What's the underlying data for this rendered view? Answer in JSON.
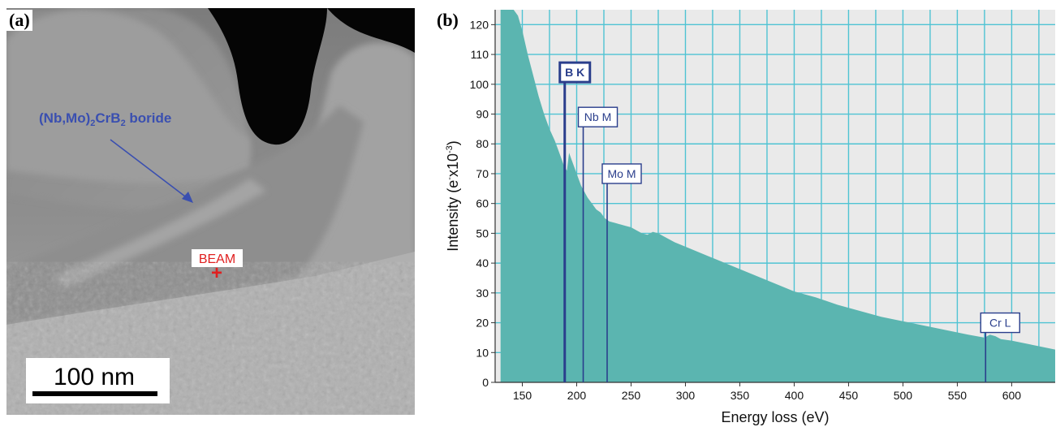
{
  "panels": {
    "a": {
      "label": "(a)"
    },
    "b": {
      "label": "(b)"
    }
  },
  "micrograph": {
    "phase_label": {
      "prefix": "(Nb,Mo)",
      "sub1": "2",
      "mid": "CrB",
      "sub2": "2",
      "suffix": " boride"
    },
    "beam_label": "BEAM",
    "beam_marker": "+",
    "scale_bar_label": "100 nm"
  },
  "colors": {
    "spectrum_fill": "#5BB5B0",
    "grid": "#4FC3D3",
    "plot_background": "#EAEAEA",
    "edge_marker": "#2A3E8C",
    "phase_annotation": "#3A4FB0",
    "beam": "#E02020"
  },
  "chart_data": {
    "type": "area",
    "xlabel": "Energy loss  (eV)",
    "ylabel": {
      "main": "Intensity  (e",
      "sup1": "-",
      "mid": "x10",
      "sup2": "-3",
      "end": ")"
    },
    "xlim": [
      125,
      640
    ],
    "ylim": [
      0,
      125
    ],
    "x_ticks": [
      150,
      200,
      250,
      300,
      350,
      400,
      450,
      500,
      550,
      600
    ],
    "y_ticks": [
      0,
      10,
      20,
      30,
      40,
      50,
      60,
      70,
      80,
      90,
      100,
      110,
      120
    ],
    "grid": true,
    "series": [
      {
        "x": [
          130,
          134,
          138,
          142,
          146,
          150,
          155,
          160,
          165,
          170,
          175,
          180,
          185,
          188,
          191,
          193,
          195,
          198,
          201,
          204,
          207,
          210,
          214,
          218,
          222,
          226,
          230,
          235,
          240,
          245,
          250,
          255,
          260,
          265,
          270,
          275,
          280,
          290,
          300,
          320,
          340,
          360,
          380,
          400,
          420,
          440,
          460,
          480,
          500,
          520,
          540,
          560,
          575,
          580,
          585,
          590,
          600,
          620,
          640
        ],
        "y": [
          125,
          125,
          125,
          125,
          123,
          118,
          110,
          103,
          96,
          90,
          85,
          81,
          76,
          73,
          71,
          77,
          75,
          72,
          69,
          66,
          64,
          62,
          60,
          58,
          57,
          55,
          54,
          53.5,
          53,
          52.5,
          52,
          51,
          50,
          49.5,
          50.5,
          50,
          49,
          47,
          45.5,
          42.5,
          39.5,
          36.5,
          33.5,
          30.5,
          28.5,
          26,
          24,
          22,
          20.5,
          19,
          17.5,
          16,
          15,
          16,
          15.5,
          14.5,
          14,
          12.5,
          11
        ]
      }
    ],
    "edges": [
      {
        "label": "B K",
        "energy": 189,
        "label_y": 104,
        "bold": true
      },
      {
        "label": "Nb M",
        "energy": 206,
        "label_y": 89,
        "bold": false
      },
      {
        "label": "Mo M",
        "energy": 228,
        "label_y": 70,
        "bold": false
      },
      {
        "label": "Cr L",
        "energy": 576,
        "label_y": 20,
        "bold": false
      }
    ]
  }
}
